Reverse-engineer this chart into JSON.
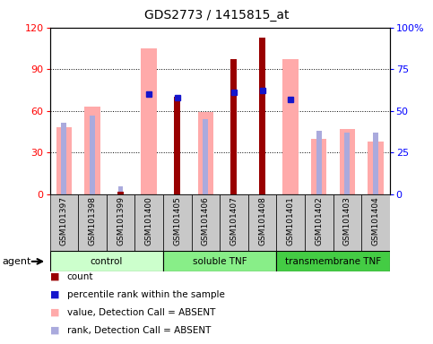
{
  "title": "GDS2773 / 1415815_at",
  "samples": [
    "GSM101397",
    "GSM101398",
    "GSM101399",
    "GSM101400",
    "GSM101405",
    "GSM101406",
    "GSM101407",
    "GSM101408",
    "GSM101401",
    "GSM101402",
    "GSM101403",
    "GSM101404"
  ],
  "groups": [
    {
      "name": "control",
      "start": 0,
      "end": 4
    },
    {
      "name": "soluble TNF",
      "start": 4,
      "end": 8
    },
    {
      "name": "transmembrane TNF",
      "start": 8,
      "end": 12
    }
  ],
  "count_values": [
    0,
    0,
    2,
    0,
    70,
    0,
    97,
    113,
    0,
    0,
    0,
    0
  ],
  "pink_bar_values": [
    48,
    63,
    0,
    105,
    0,
    59,
    0,
    0,
    97,
    40,
    47,
    38
  ],
  "blue_square_pct": [
    0,
    0,
    0,
    60,
    58,
    0,
    61,
    62,
    57,
    0,
    0,
    0
  ],
  "light_blue_pct": [
    43,
    47,
    5,
    0,
    0,
    45,
    0,
    0,
    0,
    38,
    37,
    37
  ],
  "ylim_left": [
    0,
    120
  ],
  "ylim_right": [
    0,
    100
  ],
  "yticks_left": [
    0,
    30,
    60,
    90,
    120
  ],
  "yticks_right": [
    0,
    25,
    50,
    75,
    100
  ],
  "count_color": "#990000",
  "pink_color": "#ffaaaa",
  "blue_color": "#1515cc",
  "light_blue_color": "#aaaadd",
  "group_colors": [
    "#ccffcc",
    "#88ee88",
    "#44cc44"
  ],
  "agent_label": "agent",
  "bg_gray": "#c8c8c8"
}
